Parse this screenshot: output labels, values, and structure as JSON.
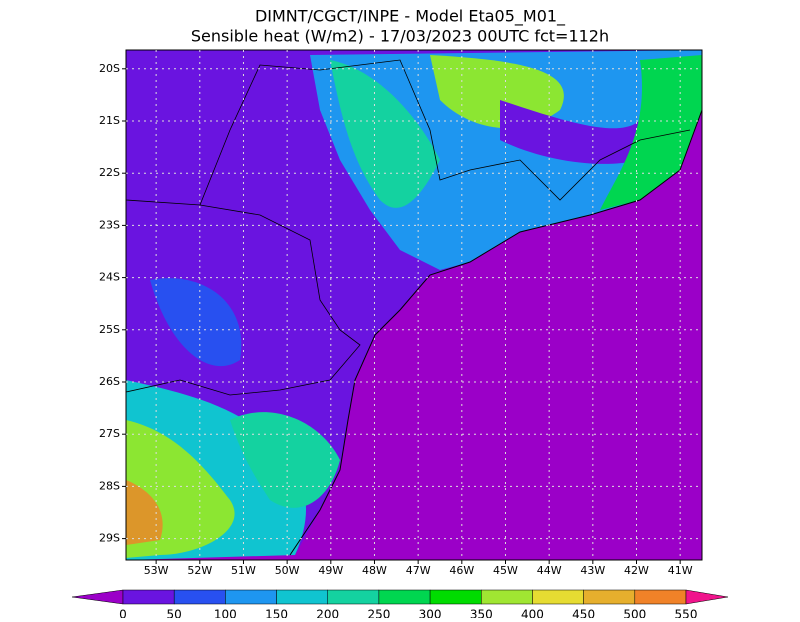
{
  "map": {
    "title": "DIMNT/CGCT/INPE -  Model Eta05_M01_",
    "subtitle": "Sensible heat (W/m2) -  17/03/2023 00UTC fct=112h",
    "lonlim": [
      -53.69,
      -40.5
    ],
    "latlim": [
      -29.41,
      -19.64
    ],
    "lat_ticks": [
      {
        "value": -20,
        "label": "20S"
      },
      {
        "value": -21,
        "label": "21S"
      },
      {
        "value": -22,
        "label": "22S"
      },
      {
        "value": -23,
        "label": "23S"
      },
      {
        "value": -24,
        "label": "24S"
      },
      {
        "value": -25,
        "label": "25S"
      },
      {
        "value": -26,
        "label": "26S"
      },
      {
        "value": -27,
        "label": "27S"
      },
      {
        "value": -28,
        "label": "28S"
      },
      {
        "value": -29,
        "label": "29S"
      }
    ],
    "lon_ticks": [
      {
        "value": -53,
        "label": "53W"
      },
      {
        "value": -52,
        "label": "52W"
      },
      {
        "value": -51,
        "label": "51W"
      },
      {
        "value": -50,
        "label": "50W"
      },
      {
        "value": -49,
        "label": "49W"
      },
      {
        "value": -48,
        "label": "48W"
      },
      {
        "value": -47,
        "label": "47W"
      },
      {
        "value": -46,
        "label": "46W"
      },
      {
        "value": -45,
        "label": "45W"
      },
      {
        "value": -44,
        "label": "44W"
      },
      {
        "value": -43,
        "label": "43W"
      },
      {
        "value": -42,
        "label": "42W"
      },
      {
        "value": -41,
        "label": "41W"
      }
    ],
    "colorbar": {
      "levels": [
        0,
        50,
        100,
        150,
        200,
        250,
        300,
        350,
        400,
        450,
        500,
        550
      ],
      "colors": [
        "#9b00c8",
        "#6a14e0",
        "#2850f0",
        "#1e96f0",
        "#10c4d0",
        "#14d2a0",
        "#00d650",
        "#00dc00",
        "#a0e632",
        "#e6dc32",
        "#e6af2d",
        "#f08228",
        "#f03c3c",
        "#f0148c"
      ]
    }
  }
}
